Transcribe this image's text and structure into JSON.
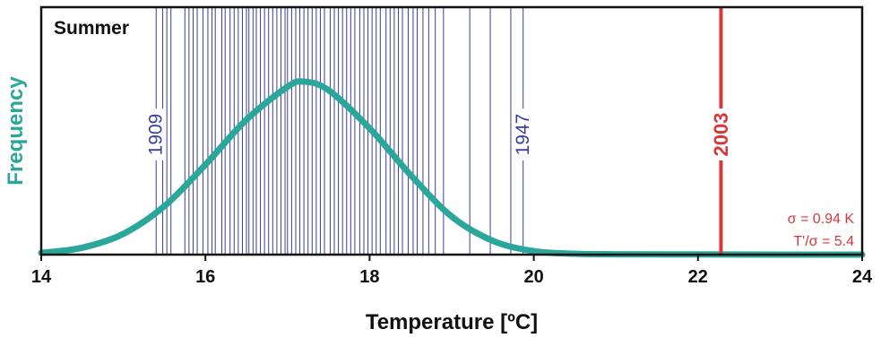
{
  "chart_data": {
    "type": "line",
    "title": "Summer",
    "xlabel": "Temperature [ºC]",
    "ylabel": "Frequency",
    "xlim": [
      14,
      24
    ],
    "x_ticks": [
      "14",
      "16",
      "18",
      "20",
      "22",
      "24"
    ],
    "series": [
      {
        "x": [
          14,
          14.5,
          15,
          15.5,
          16,
          16.5,
          17,
          17.2,
          17.5,
          18,
          18.5,
          19,
          19.5,
          20,
          20.5,
          21,
          22,
          23,
          24
        ],
        "y": [
          0.01,
          0.04,
          0.12,
          0.28,
          0.52,
          0.78,
          0.97,
          1.0,
          0.95,
          0.73,
          0.46,
          0.22,
          0.08,
          0.02,
          0.005,
          0.002,
          0.001,
          0.0,
          0.0
        ]
      }
    ],
    "year_lines": [
      15.4,
      15.48,
      15.53,
      15.58,
      15.75,
      15.8,
      15.85,
      15.9,
      15.97,
      16.03,
      16.08,
      16.12,
      16.2,
      16.24,
      16.3,
      16.35,
      16.4,
      16.45,
      16.5,
      16.53,
      16.58,
      16.62,
      16.67,
      16.72,
      16.77,
      16.82,
      16.87,
      16.92,
      16.97,
      17.0,
      17.05,
      17.1,
      17.15,
      17.2,
      17.25,
      17.3,
      17.35,
      17.4,
      17.45,
      17.52,
      17.57,
      17.62,
      17.67,
      17.72,
      17.77,
      17.82,
      17.88,
      17.93,
      17.98,
      18.03,
      18.08,
      18.13,
      18.2,
      18.25,
      18.3,
      18.35,
      18.4,
      18.47,
      18.53,
      18.58,
      18.65,
      18.72,
      18.8,
      18.9,
      19.22,
      19.47,
      19.72,
      19.87
    ],
    "labeled_years": [
      {
        "label": "1909",
        "x": 15.4
      },
      {
        "label": "1947",
        "x": 19.87
      },
      {
        "label": "2003",
        "x": 22.28
      }
    ],
    "annotations": [
      "σ = 0.94 K",
      "T'/σ = 5.4"
    ],
    "colors": {
      "curve": "#2aa79a",
      "year_lines": "#3a3e9e",
      "highlight": "#d9383a",
      "axis": "#111111",
      "ylabel": "#2aa79a"
    }
  }
}
